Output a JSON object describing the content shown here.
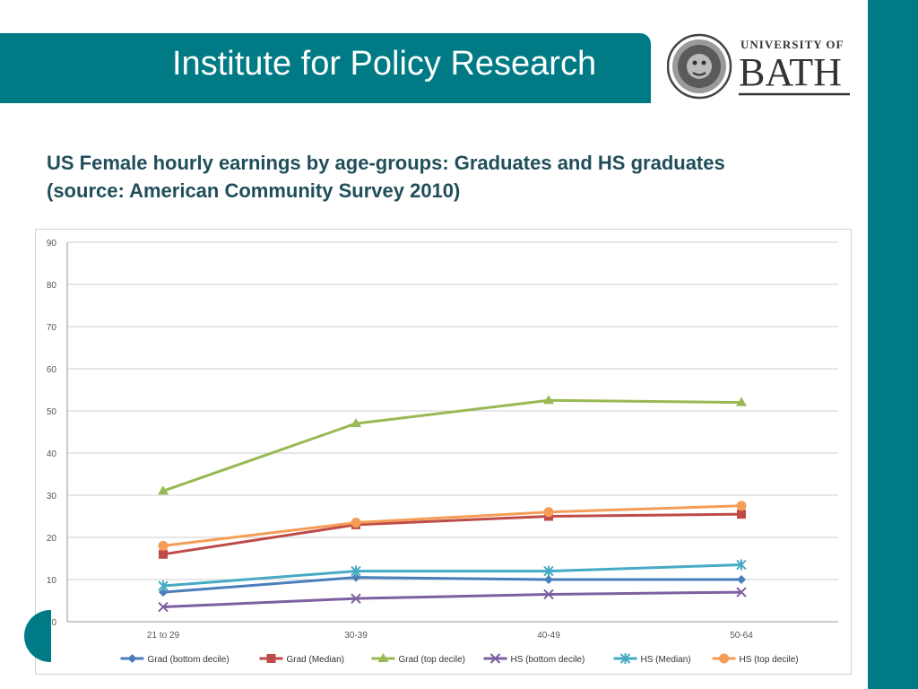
{
  "header": {
    "title": "Institute for Policy Research"
  },
  "logo": {
    "line1": "UNIVERSITY OF",
    "line2": "BATH"
  },
  "heading": {
    "line1": "US Female hourly earnings by age-groups: Graduates and HS graduates",
    "line2": "(source: American Community Survey 2010)"
  },
  "colors": {
    "accent": "#007b85",
    "heading": "#1f4e5a"
  },
  "chart_data": {
    "type": "line",
    "categories": [
      "21 to 29",
      "30-39",
      "40-49",
      "50-64"
    ],
    "ylim": [
      0,
      90
    ],
    "yticks": [
      0,
      10,
      20,
      30,
      40,
      50,
      60,
      70,
      80,
      90
    ],
    "grid": true,
    "legend": "bottom",
    "series": [
      {
        "name": "Grad (bottom decile)",
        "color": "#4a7ebb",
        "marker": "diamond",
        "values": [
          7,
          10.5,
          10,
          10
        ]
      },
      {
        "name": "Grad (Median)",
        "color": "#be4b48",
        "marker": "square",
        "values": [
          16,
          23,
          25,
          25.5
        ]
      },
      {
        "name": "Grad (top decile)",
        "color": "#98b954",
        "marker": "triangle",
        "values": [
          31,
          47,
          52.5,
          52
        ]
      },
      {
        "name": "HS (bottom decile)",
        "color": "#7d60a0",
        "marker": "x",
        "values": [
          3.5,
          5.5,
          6.5,
          7
        ]
      },
      {
        "name": "HS (Median)",
        "color": "#46aac5",
        "marker": "star",
        "values": [
          8.5,
          12,
          12,
          13.5
        ]
      },
      {
        "name": "HS (top decile)",
        "color": "#f59d56",
        "marker": "circle",
        "values": [
          18,
          23.5,
          26,
          27.5
        ]
      }
    ]
  }
}
